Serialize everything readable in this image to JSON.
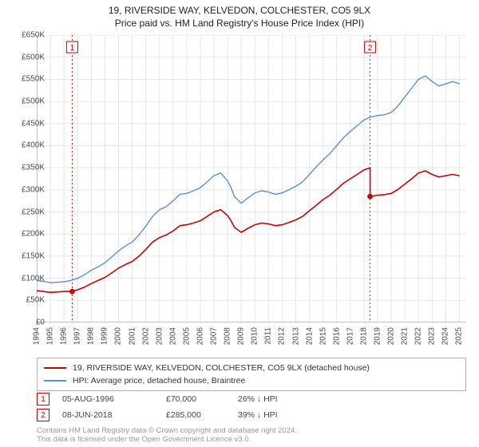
{
  "title": {
    "line1": "19, RIVERSIDE WAY, KELVEDON, COLCHESTER, CO5 9LX",
    "line2": "Price paid vs. HM Land Registry's House Price Index (HPI)"
  },
  "chart": {
    "type": "line",
    "background_color": "#ffffff",
    "grid_color": "#e6e6e6",
    "axis_color": "#888888",
    "ylim": [
      0,
      650
    ],
    "ytick_step": 50,
    "ytick_labels": [
      "£0",
      "£50K",
      "£100K",
      "£150K",
      "£200K",
      "£250K",
      "£300K",
      "£350K",
      "£400K",
      "£450K",
      "£500K",
      "£550K",
      "£600K",
      "£650K"
    ],
    "x_years": [
      1994,
      1995,
      1996,
      1997,
      1998,
      1999,
      2000,
      2001,
      2002,
      2003,
      2004,
      2005,
      2006,
      2007,
      2008,
      2009,
      2010,
      2011,
      2012,
      2013,
      2014,
      2015,
      2016,
      2017,
      2018,
      2019,
      2020,
      2021,
      2022,
      2023,
      2024,
      2025
    ],
    "xlim": [
      1994,
      2025.5
    ],
    "series": [
      {
        "name": "hpi",
        "color": "#5b8fd6",
        "width": 1.4,
        "label": "HPI: Average price, detached house, Braintree",
        "points": [
          [
            1994,
            95
          ],
          [
            1994.5,
            93
          ],
          [
            1995,
            90
          ],
          [
            1995.5,
            91
          ],
          [
            1996,
            92
          ],
          [
            1996.5,
            95
          ],
          [
            1997,
            100
          ],
          [
            1997.5,
            108
          ],
          [
            1998,
            118
          ],
          [
            1998.5,
            126
          ],
          [
            1999,
            135
          ],
          [
            1999.5,
            148
          ],
          [
            2000,
            162
          ],
          [
            2000.5,
            173
          ],
          [
            2001,
            182
          ],
          [
            2001.5,
            198
          ],
          [
            2002,
            218
          ],
          [
            2002.5,
            240
          ],
          [
            2003,
            255
          ],
          [
            2003.5,
            262
          ],
          [
            2004,
            275
          ],
          [
            2004.5,
            290
          ],
          [
            2005,
            292
          ],
          [
            2005.5,
            298
          ],
          [
            2006,
            305
          ],
          [
            2006.5,
            318
          ],
          [
            2007,
            332
          ],
          [
            2007.5,
            338
          ],
          [
            2008,
            320
          ],
          [
            2008.25,
            305
          ],
          [
            2008.5,
            285
          ],
          [
            2009,
            270
          ],
          [
            2009.5,
            282
          ],
          [
            2010,
            293
          ],
          [
            2010.5,
            298
          ],
          [
            2011,
            295
          ],
          [
            2011.5,
            290
          ],
          [
            2012,
            293
          ],
          [
            2012.5,
            300
          ],
          [
            2013,
            308
          ],
          [
            2013.5,
            318
          ],
          [
            2014,
            335
          ],
          [
            2014.5,
            352
          ],
          [
            2015,
            368
          ],
          [
            2015.5,
            382
          ],
          [
            2016,
            400
          ],
          [
            2016.5,
            418
          ],
          [
            2017,
            432
          ],
          [
            2017.5,
            445
          ],
          [
            2018,
            458
          ],
          [
            2018.5,
            465
          ],
          [
            2019,
            468
          ],
          [
            2019.5,
            470
          ],
          [
            2020,
            475
          ],
          [
            2020.5,
            490
          ],
          [
            2021,
            510
          ],
          [
            2021.5,
            530
          ],
          [
            2022,
            550
          ],
          [
            2022.5,
            558
          ],
          [
            2023,
            545
          ],
          [
            2023.5,
            535
          ],
          [
            2024,
            540
          ],
          [
            2024.5,
            545
          ],
          [
            2025,
            540
          ]
        ]
      },
      {
        "name": "price_paid",
        "color": "#cc0000",
        "width": 1.6,
        "label": "19, RIVERSIDE WAY, KELVEDON, COLCHESTER, CO5 9LX (detached house)",
        "points": [
          [
            1994,
            72
          ],
          [
            1994.5,
            70
          ],
          [
            1995,
            68
          ],
          [
            1995.5,
            69
          ],
          [
            1996,
            70
          ],
          [
            1996.6,
            70
          ],
          [
            1997,
            74
          ],
          [
            1997.5,
            80
          ],
          [
            1998,
            88
          ],
          [
            1998.5,
            95
          ],
          [
            1999,
            102
          ],
          [
            1999.5,
            112
          ],
          [
            2000,
            123
          ],
          [
            2000.5,
            131
          ],
          [
            2001,
            138
          ],
          [
            2001.5,
            150
          ],
          [
            2002,
            165
          ],
          [
            2002.5,
            182
          ],
          [
            2003,
            192
          ],
          [
            2003.5,
            198
          ],
          [
            2004,
            207
          ],
          [
            2004.5,
            219
          ],
          [
            2005,
            221
          ],
          [
            2005.5,
            225
          ],
          [
            2006,
            230
          ],
          [
            2006.5,
            240
          ],
          [
            2007,
            250
          ],
          [
            2007.5,
            255
          ],
          [
            2008,
            242
          ],
          [
            2008.25,
            230
          ],
          [
            2008.5,
            215
          ],
          [
            2009,
            204
          ],
          [
            2009.5,
            213
          ],
          [
            2010,
            221
          ],
          [
            2010.5,
            225
          ],
          [
            2011,
            223
          ],
          [
            2011.5,
            219
          ],
          [
            2012,
            221
          ],
          [
            2012.5,
            226
          ],
          [
            2013,
            232
          ],
          [
            2013.5,
            240
          ],
          [
            2014,
            253
          ],
          [
            2014.5,
            265
          ],
          [
            2015,
            278
          ],
          [
            2015.5,
            288
          ],
          [
            2016,
            301
          ],
          [
            2016.5,
            315
          ],
          [
            2017,
            325
          ],
          [
            2017.5,
            335
          ],
          [
            2018,
            345
          ],
          [
            2018.45,
            350
          ],
          [
            2018.45,
            285
          ],
          [
            2018.5,
            285
          ],
          [
            2019,
            288
          ],
          [
            2019.5,
            289
          ],
          [
            2020,
            292
          ],
          [
            2020.5,
            301
          ],
          [
            2021,
            313
          ],
          [
            2021.5,
            325
          ],
          [
            2022,
            338
          ],
          [
            2022.5,
            343
          ],
          [
            2023,
            335
          ],
          [
            2023.5,
            329
          ],
          [
            2024,
            332
          ],
          [
            2024.5,
            335
          ],
          [
            2025,
            332
          ]
        ]
      }
    ],
    "event_markers": [
      {
        "num": "1",
        "x": 1996.6,
        "y": 70,
        "box_y_top": 8,
        "line_color": "#cc0000"
      },
      {
        "num": "2",
        "x": 2018.45,
        "y": 285,
        "box_y_top": 8,
        "line_color": "#cc0000"
      }
    ]
  },
  "legend": {
    "rows": [
      {
        "color": "#cc0000",
        "label_key": "chart.series.1.label"
      },
      {
        "color": "#5b8fd6",
        "label_key": "chart.series.0.label"
      }
    ]
  },
  "events": [
    {
      "num": "1",
      "date": "05-AUG-1996",
      "price": "£70,000",
      "delta": "26% ↓ HPI"
    },
    {
      "num": "2",
      "date": "08-JUN-2018",
      "price": "£285,000",
      "delta": "39% ↓ HPI"
    }
  ],
  "footer": {
    "line1": "Contains HM Land Registry data © Crown copyright and database right 2024.",
    "line2": "This data is licensed under the Open Government Licence v3.0."
  }
}
